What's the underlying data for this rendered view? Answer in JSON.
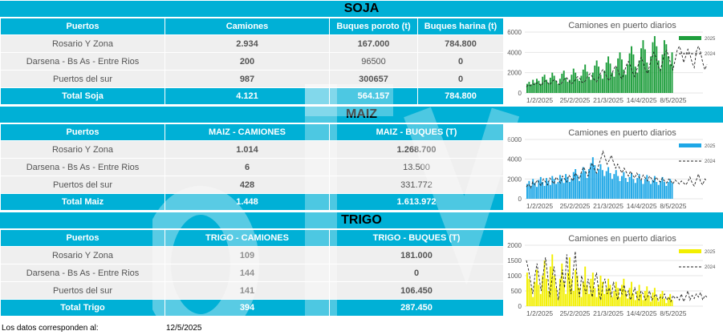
{
  "sections": {
    "soja": {
      "title": "SOJA",
      "headers": [
        "Puertos",
        "Camiones",
        "Buques poroto (t)",
        "Buques harina (t)"
      ],
      "rows": [
        [
          "Rosario Y Zona",
          "2.934",
          "167.000",
          "784.800"
        ],
        [
          "Darsena - Bs As - Entre Rios",
          "200",
          "96500",
          "0"
        ],
        [
          "Puertos del sur",
          "987",
          "300657",
          "0"
        ]
      ],
      "total": [
        "Total Soja",
        "4.121",
        "564.157",
        "784.800"
      ]
    },
    "maiz": {
      "title": "MAIZ",
      "headers": [
        "Puertos",
        "MAIZ - CAMIONES",
        "MAIZ - BUQUES (T)"
      ],
      "rows": [
        [
          "Rosario Y Zona",
          "1.014",
          "1.268.700"
        ],
        [
          "Darsena - Bs As - Entre Rios",
          "6",
          "13.500"
        ],
        [
          "Puertos del sur",
          "428",
          "331.772"
        ]
      ],
      "total": [
        "Total Maiz",
        "1.448",
        "1.613.972"
      ]
    },
    "trigo": {
      "title": "TRIGO",
      "headers": [
        "Puertos",
        "TRIGO - CAMIONES",
        "TRIGO - BUQUES (T)"
      ],
      "rows": [
        [
          "Rosario Y Zona",
          "109",
          "181.000"
        ],
        [
          "Darsena - Bs As - Entre Rios",
          "144",
          "0"
        ],
        [
          "Puertos del sur",
          "141",
          "106.450"
        ]
      ],
      "total": [
        "Total Trigo",
        "394",
        "287.450"
      ]
    }
  },
  "footer": {
    "label": "Los datos corresponden al:",
    "date": "12/5/2025"
  },
  "chart_data": [
    {
      "type": "bar",
      "title": "Camiones en puerto diarios",
      "x_ticks": [
        "1/2/2025",
        "25/2/2025",
        "21/3/2025",
        "14/4/2025",
        "8/5/2025"
      ],
      "y_ticks": [
        0,
        2000,
        4000,
        6000
      ],
      "ylim": [
        0,
        6000
      ],
      "bar_color": "#1e9e3c",
      "series": [
        {
          "name": "2025",
          "kind": "bar",
          "values": [
            900,
            1100,
            850,
            1300,
            1000,
            1400,
            1200,
            900,
            1600,
            1800,
            1300,
            1000,
            1500,
            2000,
            1700,
            1200,
            900,
            1400,
            1900,
            2200,
            1500,
            1100,
            1300,
            1800,
            2400,
            2000,
            1400,
            1200,
            1700,
            2300,
            2800,
            2100,
            1600,
            1300,
            2000,
            2700,
            3200,
            2600,
            1800,
            1400,
            2200,
            3000,
            3600,
            2900,
            2000,
            1600,
            2500,
            3400,
            4000,
            3300,
            2300,
            1800,
            2800,
            3900,
            4600,
            3800,
            2600,
            2000,
            3200,
            4400,
            5200,
            4300,
            3000,
            2300,
            3600,
            5000,
            5600,
            4600,
            3200,
            2400,
            3800,
            5200,
            4800,
            3600,
            2800,
            4000
          ]
        },
        {
          "name": "2024",
          "kind": "line",
          "values": [
            600,
            800,
            700,
            900,
            800,
            1000,
            900,
            700,
            1100,
            1200,
            1000,
            800,
            1100,
            1300,
            1200,
            900,
            800,
            1100,
            1400,
            1500,
            1200,
            900,
            1000,
            1300,
            1600,
            1500,
            1100,
            1000,
            1300,
            1700,
            1900,
            1600,
            1300,
            1100,
            1500,
            2000,
            2300,
            2000,
            1500,
            1200,
            1700,
            2300,
            2700,
            2300,
            1700,
            1400,
            2000,
            2700,
            3100,
            2700,
            2000,
            1600,
            2300,
            3000,
            3500,
            3000,
            2300,
            1900,
            2700,
            3500,
            4000,
            3500,
            2700,
            2200,
            3000,
            3800,
            4200,
            3600,
            2800,
            2300,
            3200,
            4200,
            4600,
            4000,
            3000,
            3600,
            4300,
            3800,
            3000,
            2500,
            4100,
            4600,
            4000,
            3000,
            2300,
            2800
          ]
        }
      ]
    },
    {
      "type": "bar",
      "title": "Camiones en puerto diarios",
      "x_ticks": [
        "1/2/2025",
        "25/2/2025",
        "21/3/2025",
        "14/4/2025",
        "8/5/2025"
      ],
      "y_ticks": [
        0,
        2000,
        4000,
        6000
      ],
      "ylim": [
        0,
        6000
      ],
      "bar_color": "#1ea7e6",
      "series": [
        {
          "name": "2025",
          "kind": "bar",
          "values": [
            1500,
            1800,
            1300,
            2000,
            1600,
            1200,
            1900,
            2200,
            1700,
            1300,
            2100,
            1800,
            1400,
            2300,
            2000,
            1500,
            1700,
            2400,
            2100,
            1600,
            2500,
            2200,
            1700,
            2000,
            2700,
            3000,
            2400,
            1800,
            2600,
            3200,
            2800,
            2100,
            3000,
            3600,
            4200,
            3400,
            2600,
            3000,
            3500,
            2900,
            2300,
            2800,
            3200,
            2600,
            2000,
            2500,
            2900,
            2300,
            1800,
            2300,
            2700,
            2100,
            1700,
            2200,
            2600,
            2000,
            1600,
            2100,
            2500,
            1900,
            1500,
            2000,
            2400,
            1800,
            1500,
            1900,
            2300,
            1700,
            1400,
            1800,
            2200,
            1700,
            1300,
            1700,
            2000,
            1600
          ]
        },
        {
          "name": "2024",
          "kind": "line",
          "values": [
            1200,
            1500,
            1100,
            1700,
            1400,
            1900,
            1600,
            1300,
            2000,
            1700,
            1400,
            2100,
            1800,
            1500,
            2200,
            1900,
            1600,
            2300,
            2000,
            1700,
            2400,
            2100,
            1800,
            2600,
            2300,
            2000,
            2800,
            3200,
            2700,
            2300,
            3100,
            3600,
            3000,
            2600,
            3400,
            4000,
            4800,
            4200,
            3500,
            3900,
            4400,
            3700,
            3100,
            3500,
            3000,
            2600,
            3100,
            2700,
            2300,
            2800,
            2400,
            2100,
            2600,
            2200,
            1900,
            2400,
            2100,
            1800,
            2300,
            2000,
            1700,
            2200,
            1900,
            1700,
            2100,
            1800,
            1600,
            2000,
            1800,
            1500,
            1900,
            1700,
            1500,
            1800,
            1600,
            1400,
            1700,
            2200,
            1600,
            1300,
            1900,
            2500,
            1700,
            1400,
            2000,
            1800
          ]
        }
      ]
    },
    {
      "type": "bar",
      "title": "Camiones en puerto diarios",
      "x_ticks": [
        "1/2/2025",
        "25/2/2025",
        "21/3/2025",
        "14/4/2025",
        "8/5/2025"
      ],
      "y_ticks": [
        0,
        500,
        1000,
        1500,
        2000
      ],
      "ylim": [
        0,
        2000
      ],
      "bar_color": "#f2ef00",
      "series": [
        {
          "name": "2025",
          "kind": "bar",
          "values": [
            1100,
            900,
            600,
            300,
            800,
            1200,
            700,
            400,
            1000,
            1500,
            900,
            500,
            1300,
            1700,
            1000,
            600,
            300,
            900,
            1400,
            800,
            400,
            1100,
            1600,
            900,
            500,
            1200,
            1000,
            600,
            300,
            800,
            1300,
            700,
            400,
            900,
            1100,
            600,
            300,
            700,
            1000,
            800,
            400,
            600,
            900,
            700,
            300,
            500,
            800,
            600,
            300,
            700,
            900,
            500,
            250,
            600,
            800,
            400,
            200,
            500,
            700,
            400,
            200,
            500,
            650,
            350,
            150,
            450,
            600,
            300,
            150,
            400,
            500,
            250,
            100,
            300,
            400,
            200
          ]
        },
        {
          "name": "2024",
          "kind": "line",
          "values": [
            1500,
            1200,
            800,
            400,
            1000,
            1400,
            900,
            500,
            1100,
            1600,
            1000,
            300,
            900,
            1300,
            700,
            200,
            800,
            1200,
            600,
            1700,
            900,
            400,
            1100,
            1800,
            800,
            300,
            1000,
            700,
            400,
            900,
            600,
            300,
            800,
            1100,
            500,
            200,
            700,
            900,
            400,
            600,
            300,
            800,
            500,
            200,
            600,
            400,
            700,
            300,
            500,
            200,
            400,
            600,
            300,
            200,
            500,
            400,
            200,
            300,
            500,
            200,
            300,
            400,
            200,
            300,
            250,
            400,
            200,
            300,
            150,
            350,
            250,
            300,
            200,
            400,
            150,
            300,
            500,
            200,
            350,
            250,
            400,
            300,
            450,
            200,
            350,
            300
          ]
        }
      ]
    }
  ]
}
